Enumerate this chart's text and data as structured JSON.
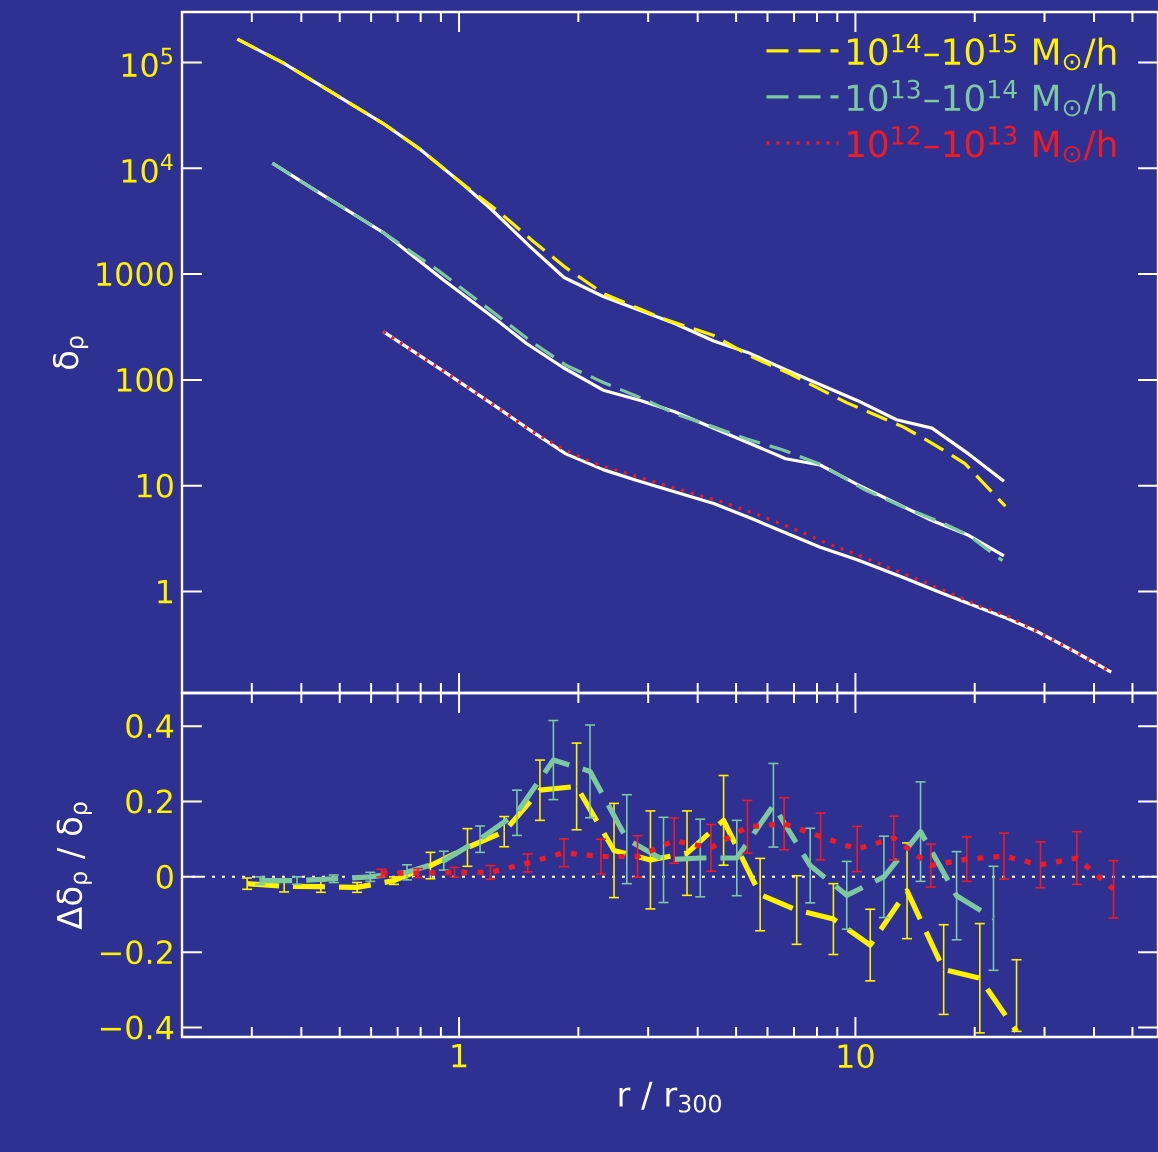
{
  "chart_data": [
    {
      "type": "line",
      "ylabel": "δ$_{ρ}$",
      "log": "xy",
      "legend": "top right",
      "tick_labels": "y",
      "xlim": [
        0.2,
        58
      ],
      "xticks": [
        1,
        10
      ],
      "ylim": [
        0.11,
        300000
      ],
      "yticks": [
        {
          "value": 100000,
          "label": "10$^{5}$"
        },
        {
          "value": 10000,
          "label": "10$^{4}$"
        },
        1000,
        100,
        10,
        1
      ],
      "series": [
        {
          "color": "#ffffff",
          "line_style": "solid",
          "x": [
            0.276,
            0.36,
            0.5,
            0.644,
            0.8,
            1.01,
            1.2,
            1.52,
            1.84,
            2.31,
            3.5,
            4.39,
            5.35,
            6.67,
            10.1,
            12.7,
            15.6,
            19.3,
            23.7
          ],
          "values": [
            166000,
            99000,
            47000,
            26500,
            15000,
            7350,
            4170,
            1780,
            930,
            614,
            341,
            233,
            182,
            125,
            64,
            42,
            35,
            20,
            11
          ]
        },
        {
          "color": "#ffffff",
          "line_style": "solid",
          "x": [
            0.338,
            0.429,
            0.644,
            0.917,
            1.24,
            1.48,
            1.83,
            2.31,
            2.87,
            3.5,
            4.39,
            5.35,
            6.67,
            8.15,
            10.1,
            12.7,
            15.6,
            19.3,
            23.7
          ],
          "values": [
            11200,
            6350,
            2470,
            870,
            372,
            221,
            131,
            80,
            64,
            50,
            35,
            25.6,
            18,
            15.7,
            10.3,
            6.8,
            4.7,
            3.4,
            2.17
          ]
        },
        {
          "color": "#ffffff",
          "line_style": "solid",
          "x": [
            0.644,
            0.917,
            1.24,
            1.52,
            1.86,
            2.31,
            2.81,
            4.39,
            5.47,
            8.15,
            10.1,
            13.2,
            16.5,
            23.8,
            28.7,
            35.8,
            44.2
          ],
          "values": [
            286,
            120,
            56,
            33,
            20,
            14.2,
            11.2,
            6.8,
            4.9,
            2.62,
            2.0,
            1.36,
            0.97,
            0.57,
            0.42,
            0.27,
            0.173
          ]
        },
        {
          "name": "10$^{14}$–10$^{15}$ M$_{⊙}$/h",
          "color": "#fff200",
          "line_style": "dashed",
          "x": [
            0.276,
            0.36,
            0.5,
            0.644,
            0.8,
            1.01,
            1.27,
            1.54,
            1.86,
            2.32,
            3.27,
            4.39,
            5.47,
            6.82,
            9.5,
            13.2,
            15.5,
            18.9,
            23.9
          ],
          "values": [
            166000,
            99000,
            47000,
            26500,
            15000,
            7350,
            3790,
            2030,
            1150,
            650,
            380,
            263,
            166,
            115,
            61,
            36,
            25.6,
            16.2,
            6.4
          ]
        },
        {
          "name": "10$^{13}$–10$^{14}$ M$_{⊙}$/h",
          "color": "#7ec8a0",
          "line_style": "dashed",
          "x": [
            0.338,
            0.429,
            0.644,
            0.893,
            1.24,
            1.52,
            1.86,
            2.32,
            3.01,
            3.5,
            4.29,
            5.35,
            6.51,
            8.15,
            10.6,
            13.2,
            16.5,
            19.3,
            23.5
          ],
          "values": [
            11200,
            6350,
            2470,
            1060,
            415,
            231,
            138,
            94,
            63,
            48,
            37,
            27.5,
            22,
            16,
            9.1,
            6.3,
            4.5,
            3.4,
            1.96
          ]
        },
        {
          "name": "10$^{12}$–10$^{13}$ M$_{⊙}$/h",
          "color": "#ed1c24",
          "line_style": "dotted",
          "x": [
            0.644,
            0.917,
            1.24,
            1.52,
            1.87,
            2.25,
            2.81,
            3.5,
            4.57,
            5.7,
            7.13,
            8.5,
            10.1,
            13.2,
            16.5,
            20.6,
            24.6,
            28.7,
            35.8,
            44.2
          ],
          "values": [
            286,
            120,
            56,
            33,
            21.3,
            15.7,
            12.2,
            9.5,
            7.1,
            5.3,
            3.8,
            2.84,
            2.24,
            1.48,
            1.05,
            0.73,
            0.57,
            0.42,
            0.27,
            0.173
          ]
        }
      ]
    },
    {
      "type": "line",
      "xlabel": "r / r$_{300}$",
      "ylabel": "Δδ$_{ρ}$ / δ$_{ρ}$",
      "log": "x",
      "xlim": [
        0.2,
        58
      ],
      "xticks": [
        1,
        10
      ],
      "ylim": [
        -0.425,
        0.488
      ],
      "yticks": [
        {
          "value": -0.4,
          "label": "−0.4"
        },
        {
          "value": -0.2,
          "label": "−0.2"
        },
        0,
        0.2,
        0.4
      ],
      "ref_lines": [
        {
          "axis": "y",
          "value": 0,
          "color": "#ffffff",
          "line_style": "dotted"
        }
      ],
      "series": [
        {
          "color": "#fff200",
          "line_style": "dashed",
          "x": [
            0.292,
            0.362,
            0.448,
            0.553,
            0.685,
            0.847,
            1.05,
            1.3,
            1.6,
            1.98,
            2.46,
            3.04,
            3.76,
            4.65,
            5.75,
            7.11,
            8.8,
            10.9,
            13.5,
            16.7,
            20.6,
            25.5
          ],
          "values": [
            -0.018,
            -0.025,
            -0.026,
            -0.028,
            -0.01,
            0.03,
            0.078,
            0.12,
            0.23,
            0.24,
            0.07,
            0.045,
            0.063,
            0.15,
            -0.047,
            -0.088,
            -0.112,
            -0.181,
            -0.037,
            -0.246,
            -0.269,
            -0.41
          ],
          "errors": [
            0.015,
            0.015,
            0.015,
            0.013,
            0.01,
            0.035,
            0.05,
            0.04,
            0.08,
            0.115,
            0.125,
            0.13,
            0.112,
            0.119,
            0.096,
            0.091,
            0.094,
            0.095,
            0.127,
            0.119,
            0.145,
            [
              -0.41,
              -0.22
            ]
          ]
        },
        {
          "color": "#7ec8a0",
          "line_style": "dashed",
          "x": [
            0.315,
            0.39,
            0.483,
            0.597,
            0.739,
            0.915,
            1.13,
            1.4,
            1.73,
            2.14,
            2.65,
            3.28,
            4.06,
            5.02,
            6.21,
            7.69,
            9.51,
            11.8,
            14.6,
            18.0,
            22.3
          ],
          "values": [
            -0.01,
            -0.01,
            -0.005,
            0,
            0.012,
            0.043,
            0.1,
            0.17,
            0.31,
            0.28,
            0.1,
            0.045,
            0.05,
            0.05,
            0.19,
            0.03,
            -0.049,
            0,
            0.12,
            -0.05,
            -0.11
          ],
          "errors": [
            0.01,
            0.01,
            0.01,
            0.012,
            0.02,
            0.025,
            0.035,
            0.06,
            0.105,
            0.123,
            0.118,
            0.113,
            0.103,
            0.1,
            0.111,
            0.099,
            0.09,
            0.108,
            0.132,
            0.117,
            0.138
          ]
        },
        {
          "color": "#ed1c24",
          "line_style": "dotted",
          "x": [
            0.637,
            0.788,
            0.974,
            1.2,
            1.49,
            1.84,
            2.28,
            2.82,
            3.49,
            4.32,
            5.34,
            6.61,
            8.17,
            10.1,
            12.5,
            15.5,
            19.1,
            23.7,
            29.3,
            36.2,
            44.8
          ],
          "values": [
            0.01,
            0.01,
            0.012,
            0.012,
            0.037,
            0.064,
            0.054,
            0.054,
            0.096,
            0.077,
            0.133,
            0.141,
            0.107,
            0.074,
            0.103,
            0.03,
            0.047,
            0.055,
            0.032,
            0.05,
            -0.033
          ],
          "errors": [
            0.01,
            0.012,
            0.013,
            0.018,
            0.024,
            0.037,
            0.046,
            0.055,
            0.06,
            0.062,
            0.07,
            0.069,
            0.062,
            0.06,
            0.058,
            0.057,
            0.059,
            0.061,
            0.061,
            0.07,
            0.076
          ]
        }
      ]
    }
  ]
}
